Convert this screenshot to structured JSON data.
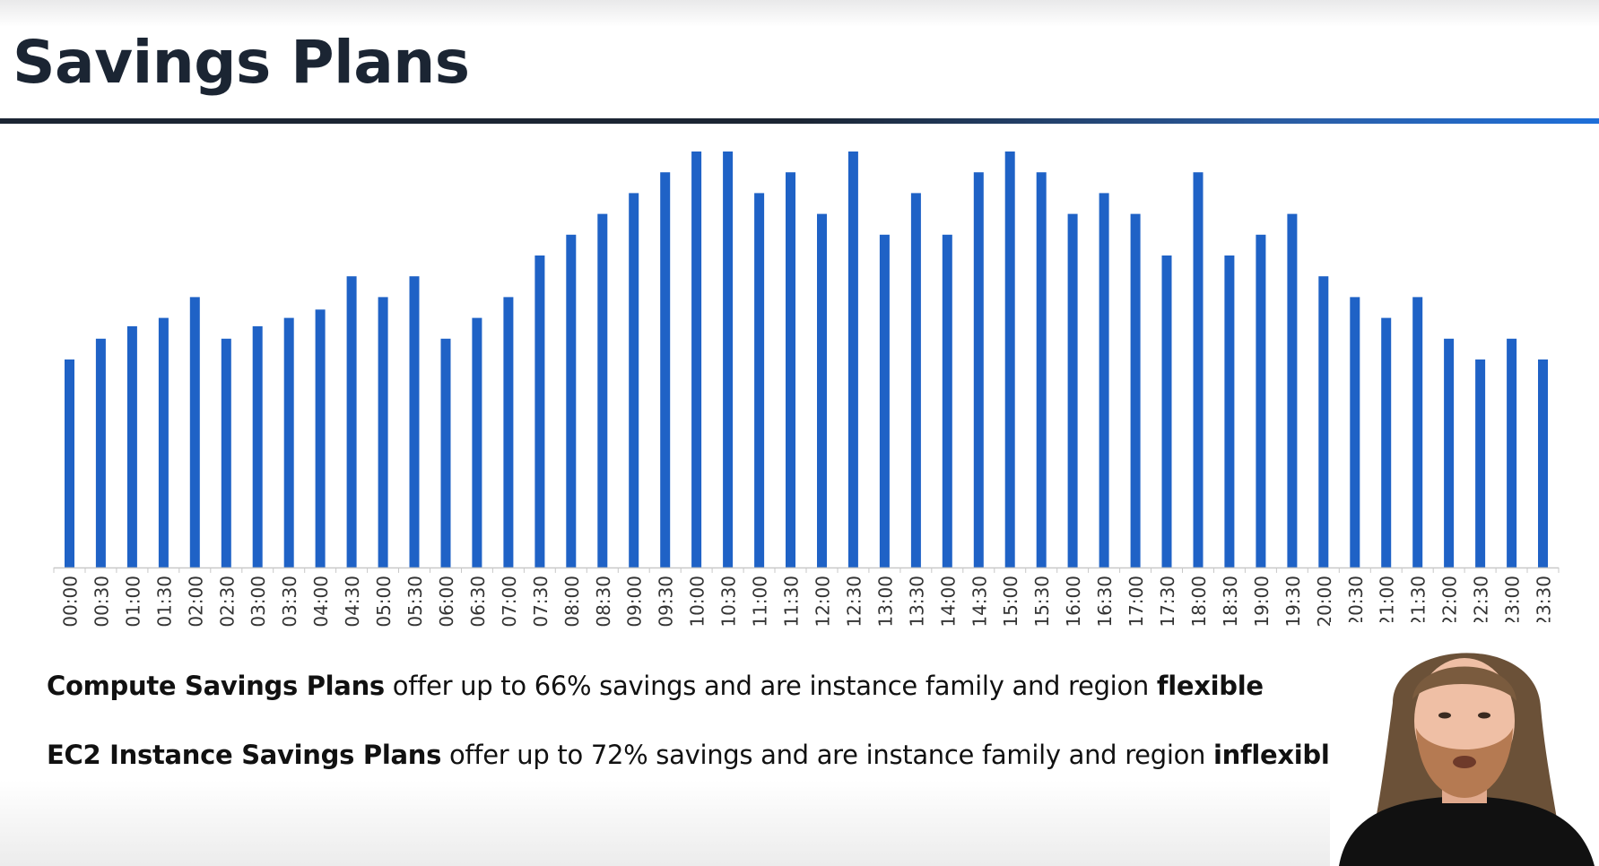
{
  "slide": {
    "title": "Savings Plans"
  },
  "chart_data": {
    "type": "bar",
    "categories": [
      "00:00",
      "00:30",
      "01:00",
      "01:30",
      "02:00",
      "02:30",
      "03:00",
      "03:30",
      "04:00",
      "04:30",
      "05:00",
      "05:30",
      "06:00",
      "06:30",
      "07:00",
      "07:30",
      "08:00",
      "08:30",
      "09:00",
      "09:30",
      "10:00",
      "10:30",
      "11:00",
      "11:30",
      "12:00",
      "12:30",
      "13:00",
      "13:30",
      "14:00",
      "14:30",
      "15:00",
      "15:30",
      "16:00",
      "16:30",
      "17:00",
      "17:30",
      "18:00",
      "18:30",
      "19:00",
      "19:30",
      "20:00",
      "20:30",
      "21:00",
      "21:30",
      "22:00",
      "22:30",
      "23:00",
      "23:30"
    ],
    "values": [
      50,
      55,
      58,
      60,
      65,
      55,
      58,
      60,
      62,
      70,
      65,
      70,
      55,
      60,
      65,
      75,
      80,
      85,
      90,
      95,
      100,
      100,
      90,
      95,
      85,
      100,
      80,
      90,
      80,
      95,
      100,
      95,
      85,
      90,
      85,
      75,
      95,
      75,
      80,
      85,
      70,
      65,
      60,
      65,
      55,
      50,
      55,
      50
    ],
    "ylim": [
      0,
      100
    ],
    "color": "#1f62c6",
    "grid": false,
    "legend": "none"
  },
  "notes": {
    "compute_bold": "Compute Savings Plans",
    "compute_rest": " offer up to 66% savings and are instance family and region ",
    "compute_end": "flexible",
    "ec2_bold": "EC2 Instance Savings Plans",
    "ec2_rest": " offer up to 72% savings and are instance family and region ",
    "ec2_end": "inflexible"
  },
  "colors": {
    "title": "#1b2533",
    "bar": "#1f62c6",
    "accent": "#1e6fd9"
  }
}
